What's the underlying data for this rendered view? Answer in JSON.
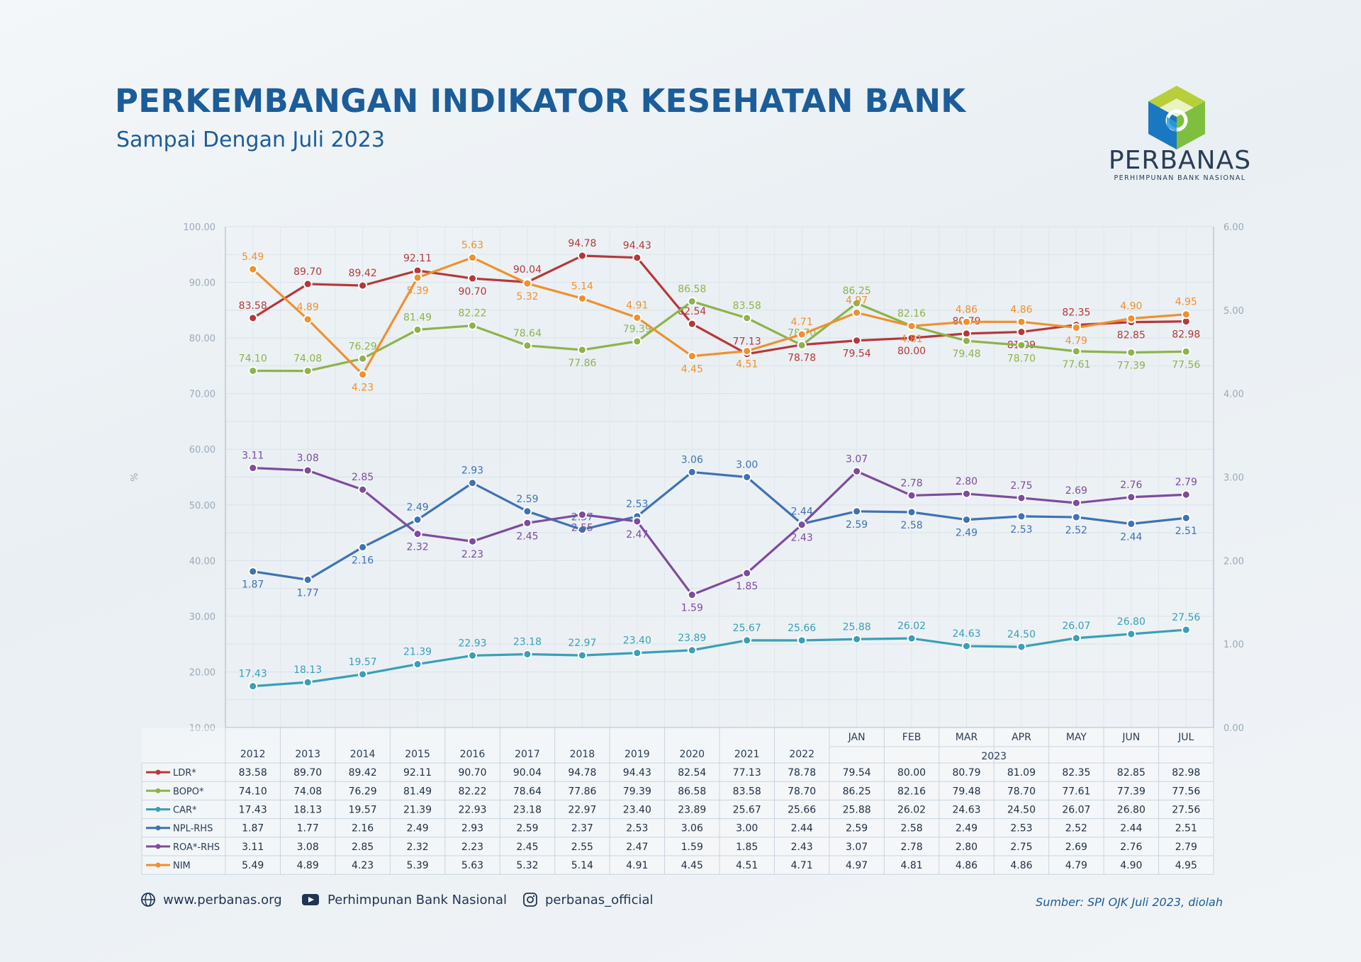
{
  "header": {
    "title": "PERKEMBANGAN INDIKATOR KESEHATAN BANK",
    "subtitle": "Sampai Dengan Juli 2023"
  },
  "logo": {
    "name": "PERBANAS",
    "tagline": "PERHIMPUNAN BANK NASIONAL",
    "icon": "perbanas-cube-logo"
  },
  "footer": {
    "website": "www.perbanas.org",
    "youtube": "Perhimpunan Bank Nasional",
    "instagram": "perbanas_official",
    "source": "Sumber: SPI OJK Juli 2023, diolah"
  },
  "chart_data": {
    "type": "line",
    "ylabel": "%",
    "ylim": [
      10,
      100
    ],
    "y2lim": [
      0,
      6
    ],
    "yticks": [
      "100.00",
      "90.00",
      "80.00",
      "70.00",
      "60.00",
      "50.00",
      "40.00",
      "30.00",
      "20.00",
      "10.00"
    ],
    "y2ticks": [
      "6.00",
      "5.00",
      "4.00",
      "3.00",
      "2.00",
      "1.00",
      "0.00"
    ],
    "categories": [
      "2012",
      "2013",
      "2014",
      "2015",
      "2016",
      "2017",
      "2018",
      "2019",
      "2020",
      "2021",
      "2022",
      "JAN",
      "FEB",
      "MAR",
      "APR",
      "MAY",
      "JUN",
      "JUL"
    ],
    "category_group": "2023",
    "grid": true,
    "legend": "table-below",
    "series": [
      {
        "name": "LDR*",
        "axis": "left",
        "color": "#b5383a",
        "values": [
          83.58,
          89.7,
          89.42,
          92.11,
          90.7,
          90.04,
          94.78,
          94.43,
          82.54,
          77.13,
          78.78,
          79.54,
          80.0,
          80.79,
          81.09,
          82.35,
          82.85,
          82.98
        ]
      },
      {
        "name": "BOPO*",
        "axis": "left",
        "color": "#8db34a",
        "values": [
          74.1,
          74.08,
          76.29,
          81.49,
          82.22,
          78.64,
          77.86,
          79.39,
          86.58,
          83.58,
          78.7,
          86.25,
          82.16,
          79.48,
          78.7,
          77.61,
          77.39,
          77.56
        ]
      },
      {
        "name": "CAR*",
        "axis": "left",
        "color": "#3a9fb8",
        "values": [
          17.43,
          18.13,
          19.57,
          21.39,
          22.93,
          23.18,
          22.97,
          23.4,
          23.89,
          25.67,
          25.66,
          25.88,
          26.02,
          24.63,
          24.5,
          26.07,
          26.8,
          27.56
        ]
      },
      {
        "name": "NPL-RHS",
        "axis": "right",
        "color": "#3f72b3",
        "values": [
          1.87,
          1.77,
          2.16,
          2.49,
          2.93,
          2.59,
          2.37,
          2.53,
          3.06,
          3.0,
          2.44,
          2.59,
          2.58,
          2.49,
          2.53,
          2.52,
          2.44,
          2.51
        ]
      },
      {
        "name": "ROA*-RHS",
        "axis": "right",
        "color": "#7e4b9e",
        "values": [
          3.11,
          3.08,
          2.85,
          2.32,
          2.23,
          2.45,
          2.55,
          2.47,
          1.59,
          1.85,
          2.43,
          3.07,
          2.78,
          2.8,
          2.75,
          2.69,
          2.76,
          2.79
        ]
      },
      {
        "name": "NIM",
        "axis": "right",
        "color": "#f0902e",
        "values": [
          5.49,
          4.89,
          4.23,
          5.39,
          5.63,
          5.32,
          5.14,
          4.91,
          4.45,
          4.51,
          4.71,
          4.97,
          4.81,
          4.86,
          4.86,
          4.79,
          4.9,
          4.95
        ]
      }
    ]
  }
}
